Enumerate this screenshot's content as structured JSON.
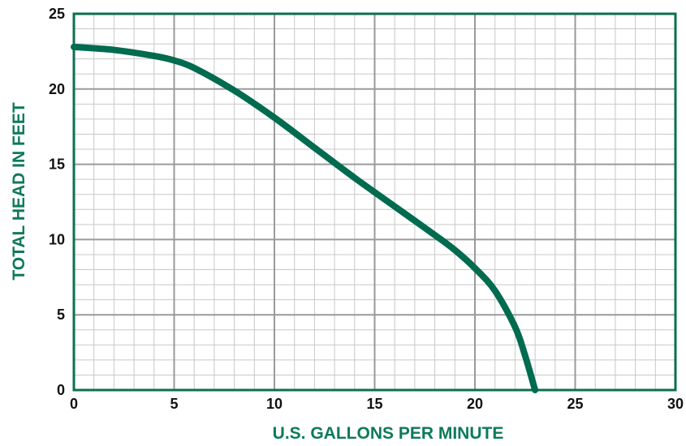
{
  "chart_data": {
    "type": "line",
    "xlabel": "U.S. GALLONS PER MINUTE",
    "ylabel": "TOTAL HEAD IN FEET",
    "xlim": [
      0,
      30
    ],
    "ylim": [
      0,
      25
    ],
    "x_ticks": [
      "0",
      "5",
      "10",
      "15",
      "20",
      "25",
      "30"
    ],
    "y_ticks": [
      "0",
      "5",
      "10",
      "15",
      "20",
      "25"
    ],
    "grid": true,
    "minor_grid_per_major": 5,
    "series": [
      {
        "x": [
          0,
          2,
          4,
          5,
          6,
          8,
          10,
          12,
          14,
          16,
          18,
          19,
          20,
          21,
          22,
          22.5,
          23
        ],
        "y": [
          22.8,
          22.6,
          22.2,
          21.9,
          21.4,
          19.9,
          18.1,
          16.1,
          14.1,
          12.2,
          10.3,
          9.3,
          8.1,
          6.6,
          4.2,
          2.3,
          0
        ]
      }
    ],
    "colors": {
      "line": "#006b4f",
      "frame": "#0d6e52",
      "major_grid": "#9a9a9a",
      "minor_grid": "#c8c8c8",
      "axis_title": "#0d7a5a"
    }
  }
}
